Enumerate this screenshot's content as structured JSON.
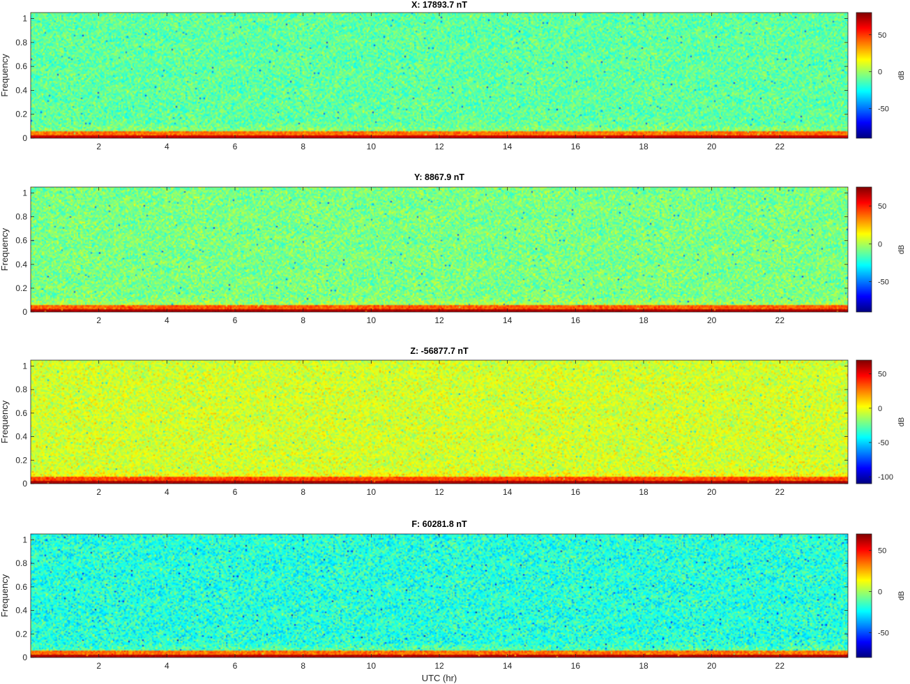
{
  "figure": {
    "xlabel": "UTC (hr)",
    "ylabel": "Frequency",
    "colorbar_label": "dB"
  },
  "chart_data": [
    {
      "type": "heatmap",
      "title": "X: 17893.7 nT",
      "xlabel": "",
      "ylabel": "Frequency",
      "xlim": [
        0,
        24
      ],
      "ylim": [
        0,
        1.05
      ],
      "xticks": [
        2,
        4,
        6,
        8,
        10,
        12,
        14,
        16,
        18,
        20,
        22
      ],
      "yticks": [
        0,
        0.2,
        0.4,
        0.6,
        0.8,
        1
      ],
      "colorbar": {
        "label": "dB",
        "range": [
          -90,
          80
        ],
        "ticks": [
          50,
          0,
          -50
        ],
        "colormap": "jet"
      },
      "description_values": {
        "baseline_db": -10,
        "low_freq_db": 50,
        "noise_db": 12
      }
    },
    {
      "type": "heatmap",
      "title": "Y: 8867.9 nT",
      "xlabel": "",
      "ylabel": "Frequency",
      "xlim": [
        0,
        24
      ],
      "ylim": [
        0,
        1.05
      ],
      "xticks": [
        2,
        4,
        6,
        8,
        10,
        12,
        14,
        16,
        18,
        20,
        22
      ],
      "yticks": [
        0,
        0.2,
        0.4,
        0.6,
        0.8,
        1
      ],
      "colorbar": {
        "label": "dB",
        "range": [
          -90,
          75
        ],
        "ticks": [
          50,
          0,
          -50
        ],
        "colormap": "jet"
      },
      "description_values": {
        "baseline_db": -8,
        "low_freq_db": 50,
        "noise_db": 12
      }
    },
    {
      "type": "heatmap",
      "title": "Z: -56877.7 nT",
      "xlabel": "",
      "ylabel": "Frequency",
      "xlim": [
        0,
        24
      ],
      "ylim": [
        0,
        1.05
      ],
      "xticks": [
        2,
        4,
        6,
        8,
        10,
        12,
        14,
        16,
        18,
        20,
        22
      ],
      "yticks": [
        0,
        0.2,
        0.4,
        0.6,
        0.8,
        1
      ],
      "colorbar": {
        "label": "dB",
        "range": [
          -110,
          70
        ],
        "ticks": [
          50,
          0,
          -50,
          -100
        ],
        "colormap": "jet"
      },
      "description_values": {
        "baseline_db": -5,
        "low_freq_db": 45,
        "noise_db": 12
      }
    },
    {
      "type": "heatmap",
      "title": "F: 60281.8 nT",
      "xlabel": "UTC (hr)",
      "ylabel": "Frequency",
      "xlim": [
        0,
        24
      ],
      "ylim": [
        0,
        1.05
      ],
      "xticks": [
        2,
        4,
        6,
        8,
        10,
        12,
        14,
        16,
        18,
        20,
        22
      ],
      "yticks": [
        0,
        0.2,
        0.4,
        0.6,
        0.8,
        1
      ],
      "colorbar": {
        "label": "dB",
        "range": [
          -80,
          70
        ],
        "ticks": [
          50,
          0,
          -50
        ],
        "colormap": "jet"
      },
      "description_values": {
        "baseline_db": -18,
        "low_freq_db": 45,
        "noise_db": 13
      }
    }
  ]
}
